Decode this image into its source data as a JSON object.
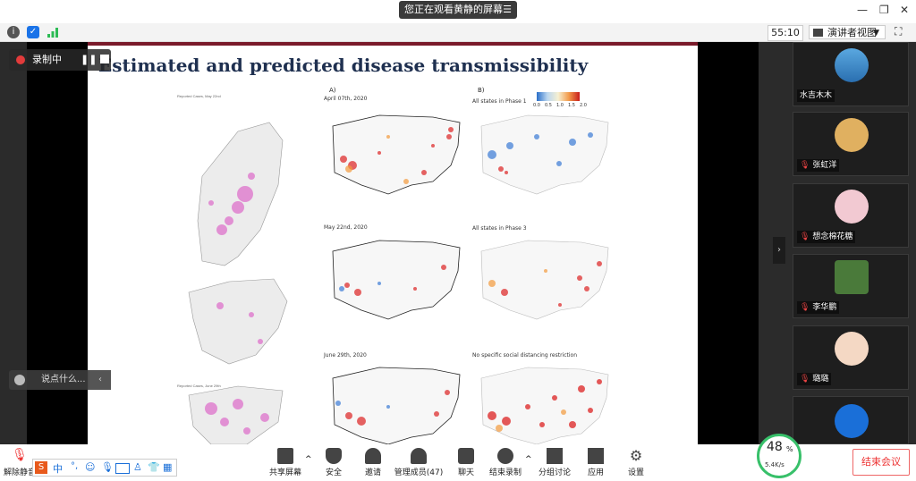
{
  "top_bar": {
    "viewing_text": "您正在观看黄静的屏幕",
    "viewing_menu_icon": "menu-icon"
  },
  "status_bar": {
    "timer": "55:10",
    "view_mode": "演讲者视图"
  },
  "recording": {
    "label": "录制中"
  },
  "chat": {
    "placeholder": "说点什么..."
  },
  "slide": {
    "title": "Estimated and predicted disease transmissibility",
    "panel_a_label": "A)",
    "panel_b_label": "B)",
    "rows": [
      {
        "a_caption": "April 07th, 2020",
        "b_caption": "All states in Phase 1"
      },
      {
        "a_caption": "May 22nd, 2020",
        "b_caption": "All states in Phase 3"
      },
      {
        "a_caption": "June 29th, 2020",
        "b_caption": "No specific social distancing restriction"
      }
    ],
    "legend_ticks": [
      "0.0",
      "0.5",
      "1.0",
      "1.5",
      "2.0"
    ],
    "left_caption_top": "Reported Cases, May 22nd",
    "left_caption_bottom": "Reported Cases, June 29th"
  },
  "participants": [
    {
      "name": "水吉木木",
      "muted": false
    },
    {
      "name": "张虹洋",
      "muted": true
    },
    {
      "name": "想念棉花糖",
      "muted": true
    },
    {
      "name": "李华鹏",
      "muted": true
    },
    {
      "name": "璐璐",
      "muted": true
    },
    {
      "name": "",
      "muted": false
    }
  ],
  "toolbar": {
    "unmute": "解除静音",
    "share": "共享屏幕",
    "security": "安全",
    "invite": "邀请",
    "members": "管理成员(47)",
    "chat": "聊天",
    "stop_record": "结束录制",
    "breakout": "分组讨论",
    "apps": "应用",
    "settings": "设置",
    "end_meeting": "结束会议"
  },
  "network": {
    "percent": "48",
    "unit": "%",
    "speed": "5.4K/s"
  },
  "ime": {
    "lang": "中"
  }
}
